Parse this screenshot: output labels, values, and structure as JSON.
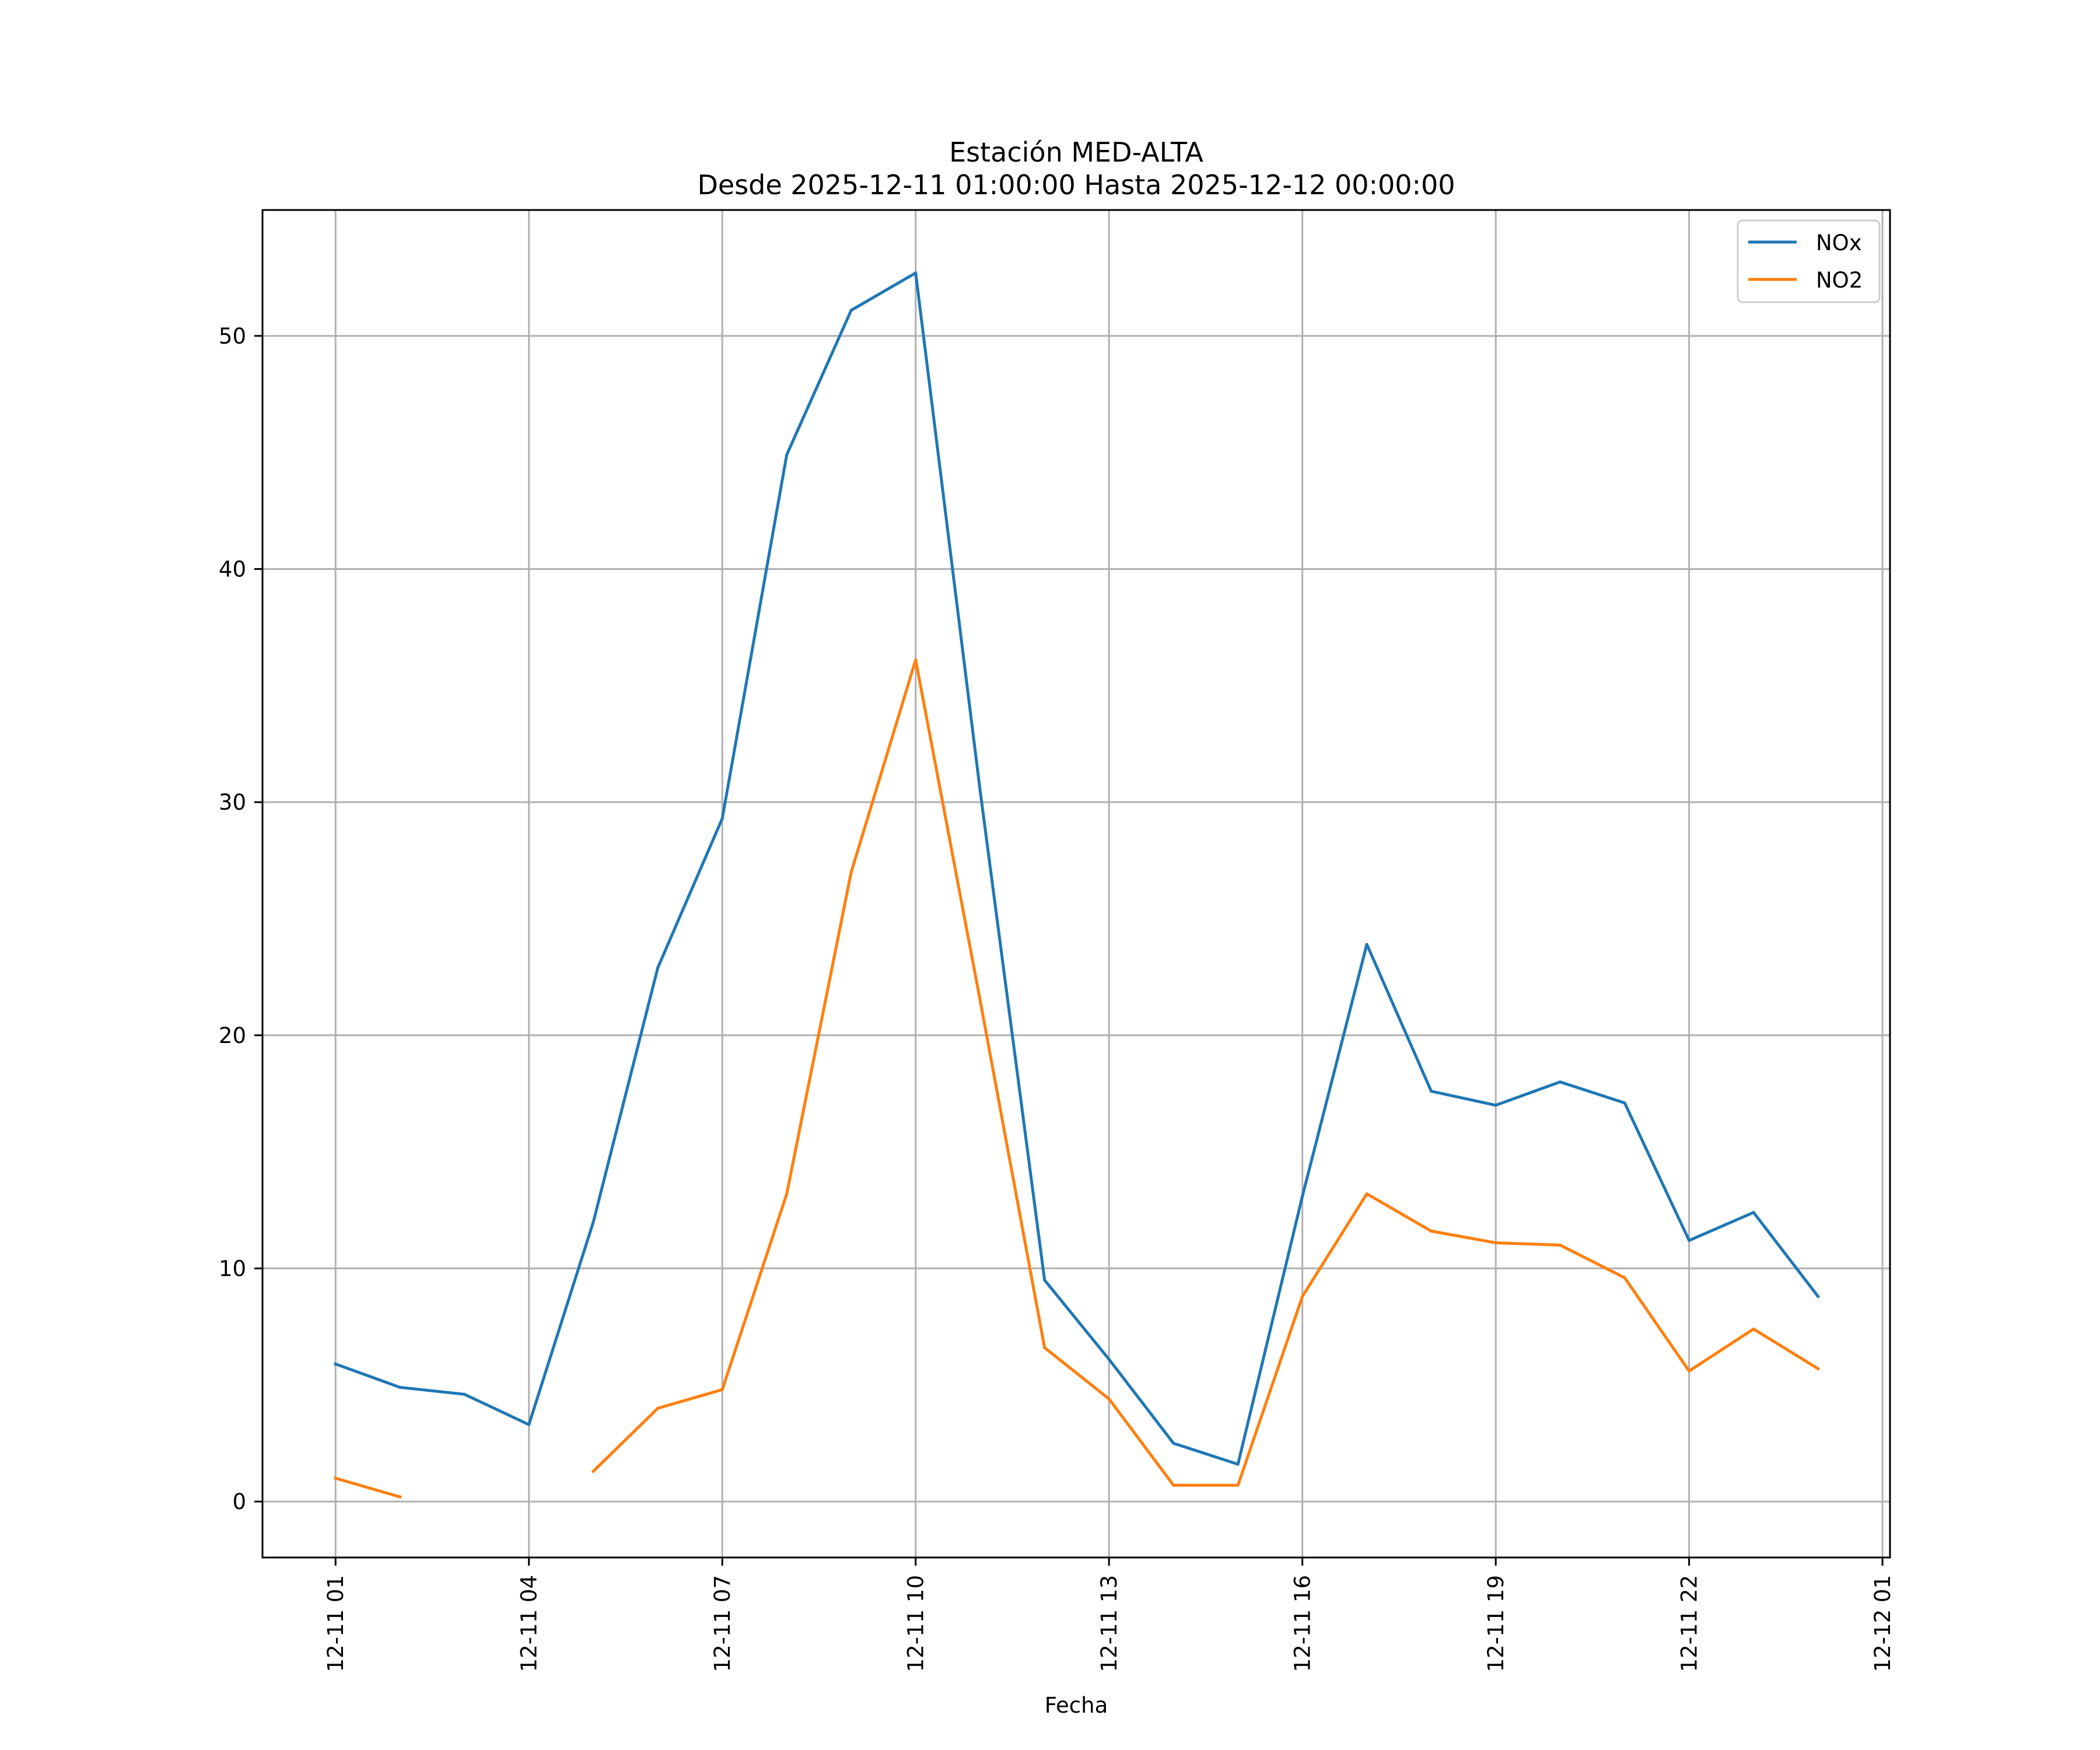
{
  "chart_data": {
    "type": "line",
    "title": "Estación MED-ALTA",
    "subtitle": "Desde 2025-12-11 01:00:00 Hasta 2025-12-12 00:00:00",
    "xlabel": "Fecha",
    "ylabel": "",
    "x": [
      "2025-12-11 01:00",
      "2025-12-11 02:00",
      "2025-12-11 03:00",
      "2025-12-11 04:00",
      "2025-12-11 05:00",
      "2025-12-11 06:00",
      "2025-12-11 07:00",
      "2025-12-11 08:00",
      "2025-12-11 09:00",
      "2025-12-11 10:00",
      "2025-12-11 11:00",
      "2025-12-11 12:00",
      "2025-12-11 13:00",
      "2025-12-11 14:00",
      "2025-12-11 15:00",
      "2025-12-11 16:00",
      "2025-12-11 17:00",
      "2025-12-11 18:00",
      "2025-12-11 19:00",
      "2025-12-11 20:00",
      "2025-12-11 21:00",
      "2025-12-11 22:00",
      "2025-12-11 23:00",
      "2025-12-12 00:00"
    ],
    "xlim": [
      "2025-12-10 23:52",
      "2025-12-12 01:07"
    ],
    "xticks": [
      {
        "label": "12-11 01",
        "value": "2025-12-11 01:00"
      },
      {
        "label": "12-11 04",
        "value": "2025-12-11 04:00"
      },
      {
        "label": "12-11 07",
        "value": "2025-12-11 07:00"
      },
      {
        "label": "12-11 10",
        "value": "2025-12-11 10:00"
      },
      {
        "label": "12-11 13",
        "value": "2025-12-11 13:00"
      },
      {
        "label": "12-11 16",
        "value": "2025-12-11 16:00"
      },
      {
        "label": "12-11 19",
        "value": "2025-12-11 19:00"
      },
      {
        "label": "12-11 22",
        "value": "2025-12-11 22:00"
      },
      {
        "label": "12-12 01",
        "value": "2025-12-12 01:00"
      }
    ],
    "ylim": [
      -2.4,
      55.4
    ],
    "yticks": [
      0,
      10,
      20,
      30,
      40,
      50
    ],
    "grid": true,
    "legend_position": "top-right",
    "series": [
      {
        "name": "NOx",
        "color": "#1f77b4",
        "values": [
          5.9,
          4.9,
          4.6,
          3.3,
          12.0,
          22.9,
          29.3,
          44.9,
          51.1,
          52.7,
          30.5,
          9.5,
          6.1,
          2.5,
          1.6,
          13.1,
          23.9,
          17.6,
          17.0,
          18.0,
          17.1,
          11.2,
          12.4,
          8.8
        ]
      },
      {
        "name": "NO2",
        "color": "#ff7f0e",
        "values": [
          1.0,
          0.2,
          null,
          null,
          1.3,
          4.0,
          4.8,
          13.2,
          27.0,
          36.1,
          21.5,
          6.6,
          4.4,
          0.7,
          0.7,
          8.8,
          13.2,
          11.6,
          11.1,
          11.0,
          9.6,
          5.6,
          7.4,
          5.7
        ]
      }
    ]
  }
}
